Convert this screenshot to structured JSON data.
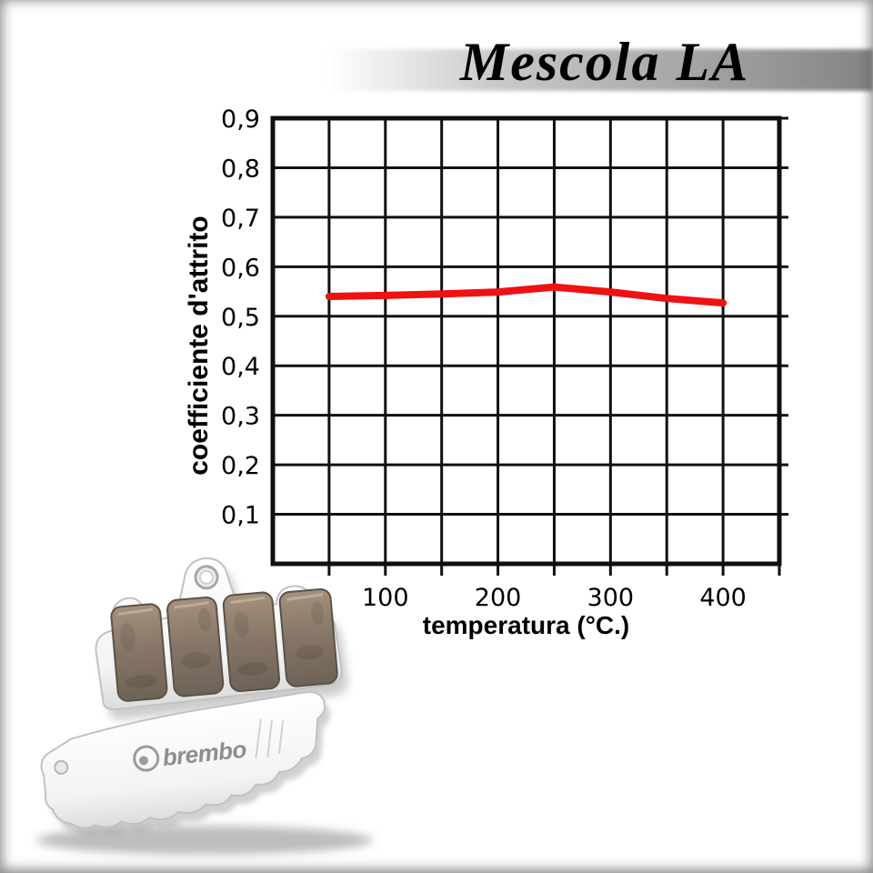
{
  "title": "Mescola LA",
  "chart_data": {
    "type": "line",
    "title": "Mescola LA",
    "xlabel": "temperatura (°C.)",
    "ylabel": "coefficiente d'attrito",
    "xlim": [
      0,
      450
    ],
    "ylim": [
      0,
      0.9
    ],
    "x_gridstep": 50,
    "y_gridstep": 0.1,
    "grid": true,
    "xticks": [
      100,
      200,
      300,
      400
    ],
    "xtick_labels": [
      "100",
      "200",
      "300",
      "400"
    ],
    "yticks": [
      0.1,
      0.2,
      0.3,
      0.4,
      0.5,
      0.6,
      0.7,
      0.8,
      0.9
    ],
    "ytick_labels": [
      "0,1",
      "0,2",
      "0,3",
      "0,4",
      "0,5",
      "0,6",
      "0,7",
      "0,8",
      "0,9"
    ],
    "series": [
      {
        "name": "Mescola LA",
        "color": "#f01111",
        "x": [
          50,
          100,
          150,
          200,
          250,
          300,
          350,
          400
        ],
        "y": [
          0.54,
          0.542,
          0.545,
          0.549,
          0.559,
          0.549,
          0.536,
          0.527
        ]
      }
    ]
  },
  "product": {
    "brand": "brembo"
  },
  "colors": {
    "line_red": "#f01111",
    "grid_black": "#101010",
    "banner_gray": "#8f8f8f"
  }
}
